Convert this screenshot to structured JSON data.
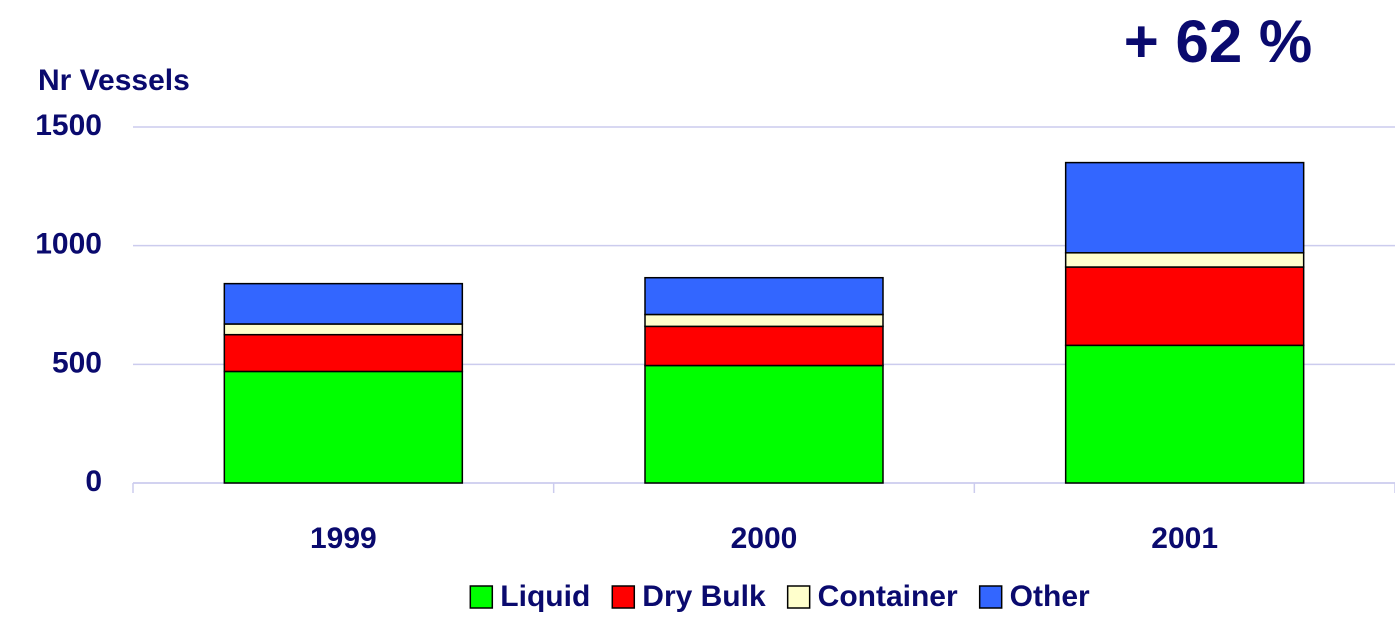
{
  "chart_data": {
    "type": "stacked_bar",
    "y_axis_label": "Nr Vessels",
    "annotation": "+ 62 %",
    "categories": [
      "1999",
      "2000",
      "2001"
    ],
    "series": [
      {
        "name": "Liquid",
        "color": "#00ff00",
        "values": [
          470,
          495,
          580
        ]
      },
      {
        "name": "Dry Bulk",
        "color": "#ff0000",
        "values": [
          155,
          165,
          330
        ]
      },
      {
        "name": "Container",
        "color": "#ffffcc",
        "values": [
          45,
          50,
          60
        ]
      },
      {
        "name": "Other",
        "color": "#3366ff",
        "values": [
          170,
          155,
          380
        ]
      }
    ],
    "ylim": [
      0,
      1500
    ],
    "yticks": [
      0,
      500,
      1000,
      1500
    ],
    "grid": true,
    "legend": "bottom"
  }
}
